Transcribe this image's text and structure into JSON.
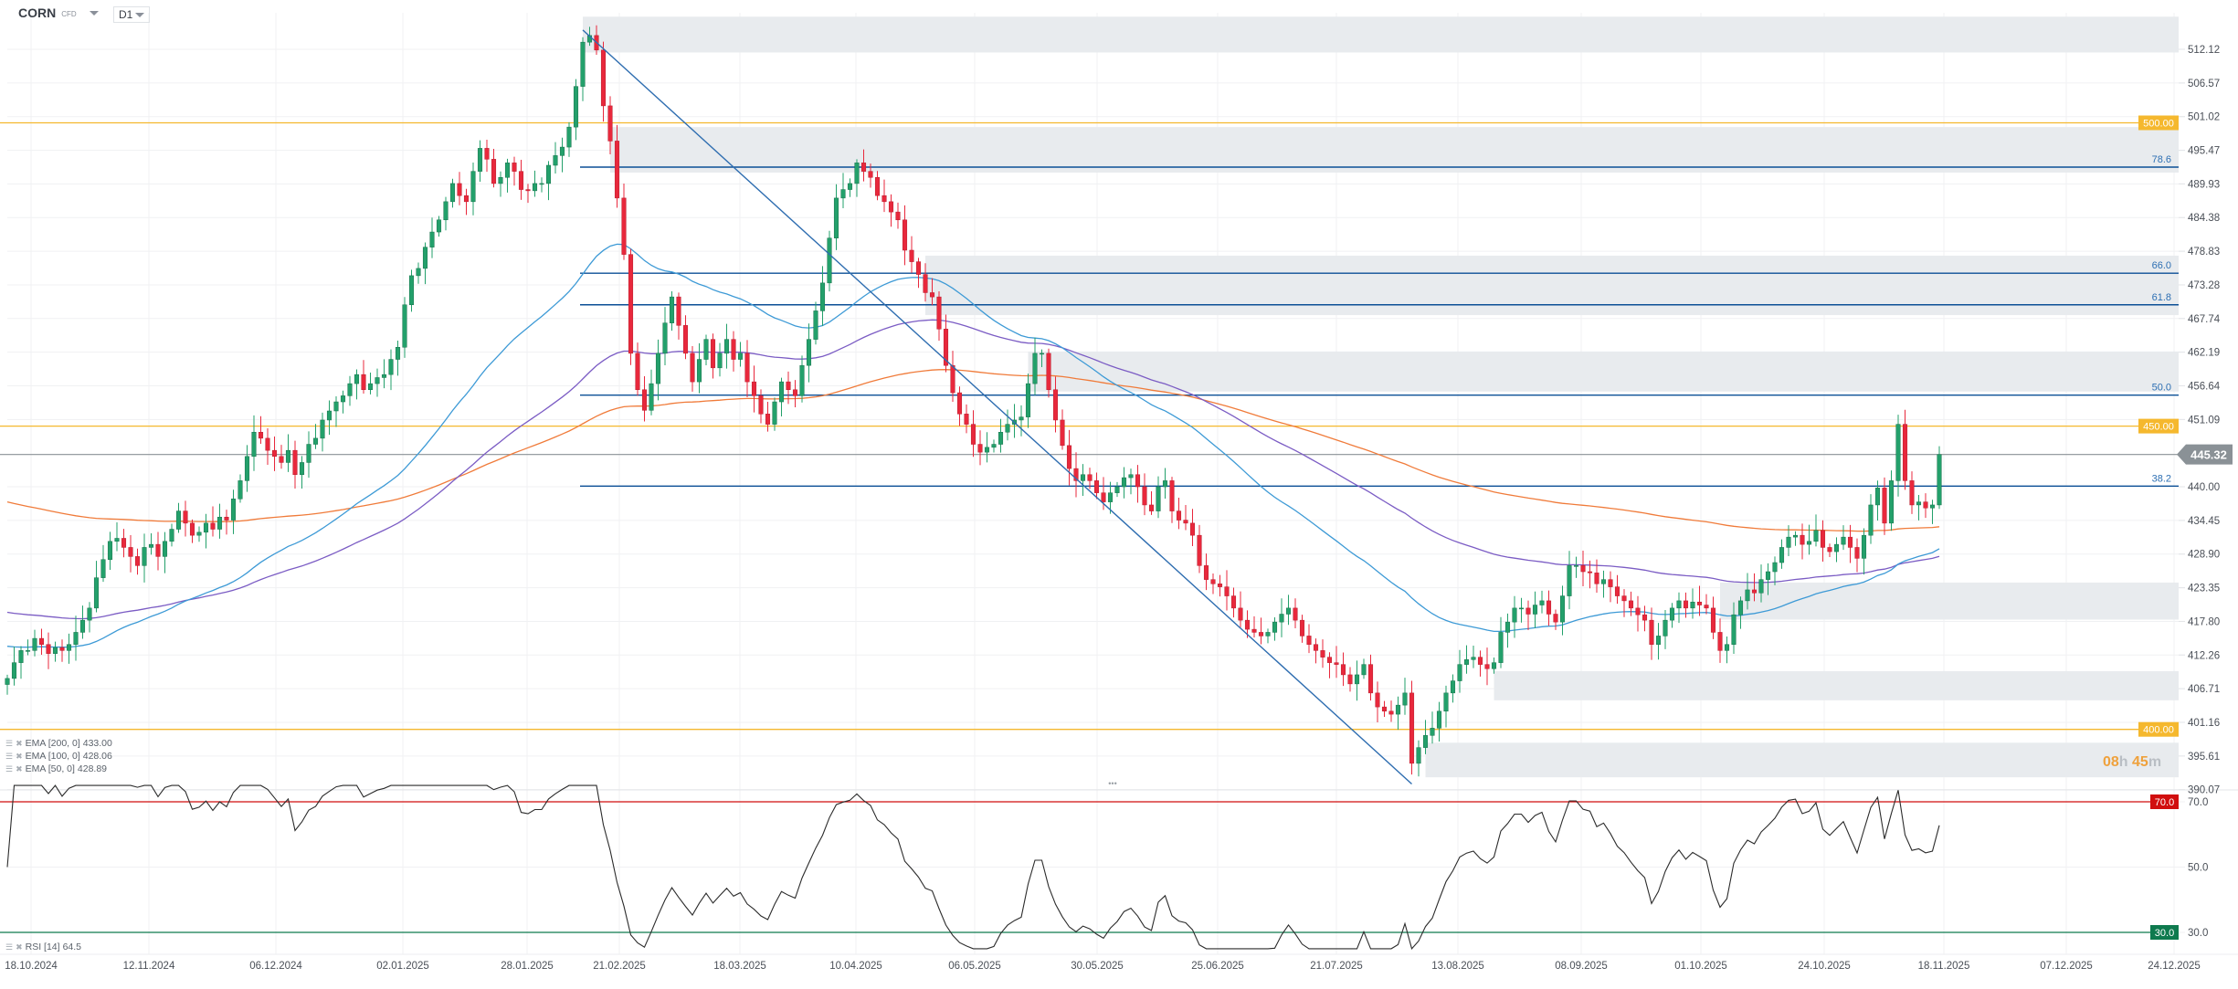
{
  "header": {
    "symbol": "CORN",
    "instrument_type": "CFD",
    "timeframe": "D1"
  },
  "timer": {
    "hours": "08",
    "h": "h",
    "minutes": "45",
    "m": "m"
  },
  "legend": [
    {
      "label": "EMA [200,  0]",
      "value": "433.00"
    },
    {
      "label": "EMA [100,  0]",
      "value": "428.06"
    },
    {
      "label": "EMA [50,  0]",
      "value": "428.89"
    }
  ],
  "rsi_legend": {
    "label": "RSI [14]",
    "value": "64.5"
  },
  "colors": {
    "up": "#23a06b",
    "down": "#e8283c",
    "ema200": "#f07b3a",
    "ema100": "#7b5cc4",
    "ema50": "#3d9ad6",
    "fib": "#0b4f96",
    "level": "#f5b82e",
    "zone": "#e8ebee",
    "current": "#8a9196",
    "rsi70": "#d10e0e",
    "rsi30": "#0e7a4e"
  },
  "chart_data": {
    "type": "candlestick",
    "symbol": "CORN",
    "timeframe": "D1",
    "y_ticks": [
      "512.12",
      "506.57",
      "501.02",
      "495.47",
      "489.93",
      "484.38",
      "478.83",
      "473.28",
      "467.74",
      "462.19",
      "456.64",
      "451.09",
      "440.00",
      "434.45",
      "428.90",
      "423.35",
      "417.80",
      "412.26",
      "406.71",
      "401.16",
      "395.61",
      "390.07"
    ],
    "ylim": [
      390.07,
      512.12
    ],
    "x_ticks": [
      "18.10.2024",
      "12.11.2024",
      "06.12.2024",
      "02.01.2025",
      "28.01.2025",
      "21.02.2025",
      "18.03.2025",
      "10.04.2025",
      "06.05.2025",
      "30.05.2025",
      "25.06.2025",
      "21.07.2025",
      "13.08.2025",
      "08.09.2025",
      "01.10.2025",
      "24.10.2025",
      "18.11.2025",
      "07.12.2025",
      "24.12.2025"
    ],
    "close": [
      408.4,
      411,
      413,
      413,
      415,
      414,
      412.5,
      413.5,
      413,
      414,
      416,
      418,
      420,
      425,
      428,
      431,
      431.5,
      430,
      428.5,
      427,
      430,
      430.5,
      428.5,
      431,
      433,
      436,
      434,
      432,
      432.5,
      434,
      433,
      435,
      434.5,
      438,
      441,
      445,
      449,
      448,
      446,
      445,
      444,
      446,
      442,
      444,
      447,
      448,
      451,
      452.5,
      454,
      455,
      457,
      458.5,
      456,
      457,
      458,
      458.5,
      461,
      463,
      470,
      474.8,
      476,
      479.5,
      482,
      484,
      487,
      490,
      488,
      487,
      492,
      495.8,
      494,
      490,
      491,
      493.4,
      492,
      489,
      488.8,
      490,
      490,
      493,
      494.6,
      496,
      499.3,
      506,
      513.3,
      514.4,
      512,
      502.8,
      497,
      487.6,
      478.3,
      462,
      456,
      452.6,
      457,
      462,
      467,
      471.3,
      466.6,
      462,
      457.3,
      461,
      464.3,
      459.6,
      462,
      464.3,
      461,
      462,
      457.3,
      455,
      452,
      450.3,
      454,
      457.3,
      456,
      455,
      460,
      464.3,
      469,
      473.6,
      481,
      487.6,
      489,
      490,
      493.4,
      492,
      491,
      488,
      487,
      485.3,
      484,
      479,
      477.1,
      475,
      472,
      471.3,
      466,
      460,
      455.5,
      452,
      450.3,
      447,
      445.7,
      446.5,
      447,
      449,
      450.3,
      451,
      451.5,
      457,
      462,
      462,
      456,
      451,
      446.8,
      443,
      441,
      442,
      441,
      439,
      437.5,
      439,
      440,
      441.5,
      442,
      440,
      437,
      436,
      440,
      441,
      436,
      434.5,
      434,
      432,
      427,
      424.7,
      424,
      423.5,
      422,
      420,
      418,
      416.5,
      416,
      415.4,
      416,
      417.7,
      419,
      420,
      418,
      415.4,
      414,
      413,
      411.9,
      411,
      410.7,
      409,
      407.5,
      409,
      410.7,
      406,
      403.7,
      403,
      402.5,
      404,
      406,
      394.4,
      397,
      399,
      400.2,
      403,
      406,
      408,
      410.7,
      411.5,
      411.9,
      410.7,
      410,
      411,
      416,
      417.7,
      420,
      420,
      419,
      420.5,
      421.2,
      419,
      417.7,
      422,
      427,
      427,
      426,
      425.8,
      424,
      424.7,
      423.5,
      422,
      421.2,
      420,
      418.9,
      418,
      414,
      415.4,
      418,
      420,
      421.2,
      420,
      421,
      420.5,
      420,
      416,
      413,
      414,
      418.9,
      421.2,
      423,
      422.5,
      424.7,
      426,
      427.5,
      430,
      431.7,
      432,
      430.5,
      431,
      432.8,
      430,
      429.3,
      430.5,
      431.7,
      430,
      428.2,
      432,
      437,
      439.8,
      434,
      441,
      450.3,
      441,
      437,
      437.5,
      436.5,
      437,
      445.32
    ],
    "ema_start": {
      "ema200": 437.5,
      "ema100": 419.3,
      "ema50": 413.7
    },
    "series": [
      {
        "name": "EMA [200,  0]",
        "period": 200,
        "last": 433.0
      },
      {
        "name": "EMA [100,  0]",
        "period": 100,
        "last": 428.06
      },
      {
        "name": "EMA [50,  0]",
        "period": 50,
        "last": 428.89
      }
    ],
    "current_price": "445.32",
    "horizontal_levels": [
      {
        "value": 500,
        "label": "500.00"
      },
      {
        "value": 450,
        "label": "450.00"
      },
      {
        "value": 400,
        "label": "400.00"
      }
    ],
    "fibonacci": [
      {
        "label": "78.6",
        "price": 492.7
      },
      {
        "label": "66.0",
        "price": 475.2
      },
      {
        "label": "61.8",
        "price": 470.0
      },
      {
        "label": "50.0",
        "price": 455.1
      },
      {
        "label": "38.2",
        "price": 440.1
      }
    ],
    "zones": [
      {
        "from_bar": 84,
        "top": 517.5,
        "bottom": 511.6
      },
      {
        "from_bar": 88,
        "top": 499.3,
        "bottom": 491.8
      },
      {
        "from_bar": 134,
        "top": 478.1,
        "bottom": 468.3
      },
      {
        "from_bar": 149,
        "top": 462.3,
        "bottom": 455.7
      },
      {
        "from_bar": 250,
        "top": 424.2,
        "bottom": 418.1
      },
      {
        "from_bar": 217,
        "top": 409.6,
        "bottom": 404.8
      },
      {
        "from_bar": 207,
        "top": 397.8,
        "bottom": 392.1
      }
    ],
    "trendline": {
      "from": {
        "bar": 84,
        "price": 515.3
      },
      "to": {
        "bar": 205,
        "price": 391.0
      }
    },
    "rsi": {
      "period": 14,
      "last": 64.5,
      "levels": [
        {
          "value": 70,
          "label": "70.0"
        },
        {
          "value": 30,
          "label": "30.0"
        }
      ],
      "y_ticks": [
        "70.0",
        "50.0",
        "30.0"
      ],
      "ylim": [
        30,
        70
      ]
    }
  }
}
